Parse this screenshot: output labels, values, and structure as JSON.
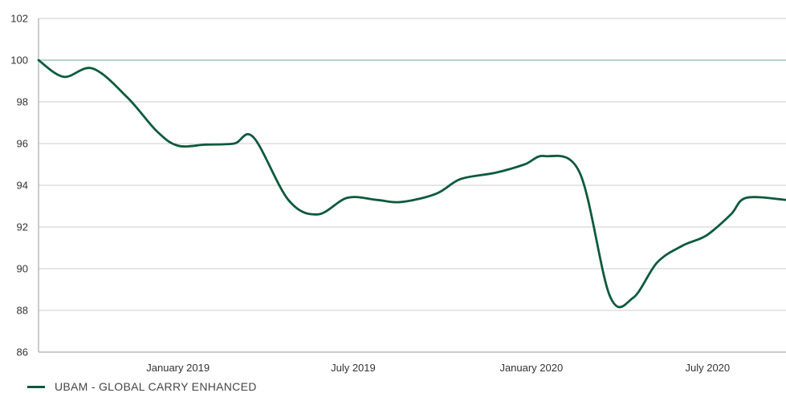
{
  "chart_data": {
    "type": "line",
    "title": "",
    "xlabel": "",
    "ylabel": "",
    "ylim": [
      86,
      102
    ],
    "yticks": [
      86,
      88,
      90,
      92,
      94,
      96,
      98,
      100,
      102
    ],
    "xlim": [
      "2018-08-10",
      "2020-09-20"
    ],
    "xticks": [
      {
        "label": "January 2019",
        "date": "2019-01-01"
      },
      {
        "label": "July 2019",
        "date": "2019-07-01"
      },
      {
        "label": "January 2020",
        "date": "2020-01-01"
      },
      {
        "label": "July 2020",
        "date": "2020-07-01"
      }
    ],
    "reference_line": {
      "y": 100,
      "color": "#b7d3c8"
    },
    "grid": {
      "horizontal": true,
      "color": "#cccccc"
    },
    "legend_position": "bottom-left",
    "series": [
      {
        "name": "UBAM - GLOBAL CARRY ENHANCED",
        "color": "#0b5a3c",
        "x": [
          "2018-08-10",
          "2018-09-05",
          "2018-10-05",
          "2018-11-10",
          "2018-12-10",
          "2019-01-01",
          "2019-01-30",
          "2019-02-28",
          "2019-03-20",
          "2019-04-25",
          "2019-05-25",
          "2019-06-25",
          "2019-07-25",
          "2019-08-20",
          "2019-09-25",
          "2019-10-20",
          "2019-11-25",
          "2019-12-25",
          "2020-01-15",
          "2020-02-20",
          "2020-03-22",
          "2020-04-15",
          "2020-05-10",
          "2020-06-05",
          "2020-06-30",
          "2020-07-25",
          "2020-08-10",
          "2020-09-20"
        ],
        "values": [
          100.0,
          99.2,
          99.6,
          98.2,
          96.6,
          95.9,
          95.95,
          96.0,
          96.3,
          93.3,
          92.6,
          93.4,
          93.3,
          93.2,
          93.6,
          94.3,
          94.6,
          95.0,
          95.4,
          94.6,
          88.7,
          88.6,
          90.3,
          91.1,
          91.6,
          92.6,
          93.4,
          93.3
        ]
      }
    ]
  }
}
